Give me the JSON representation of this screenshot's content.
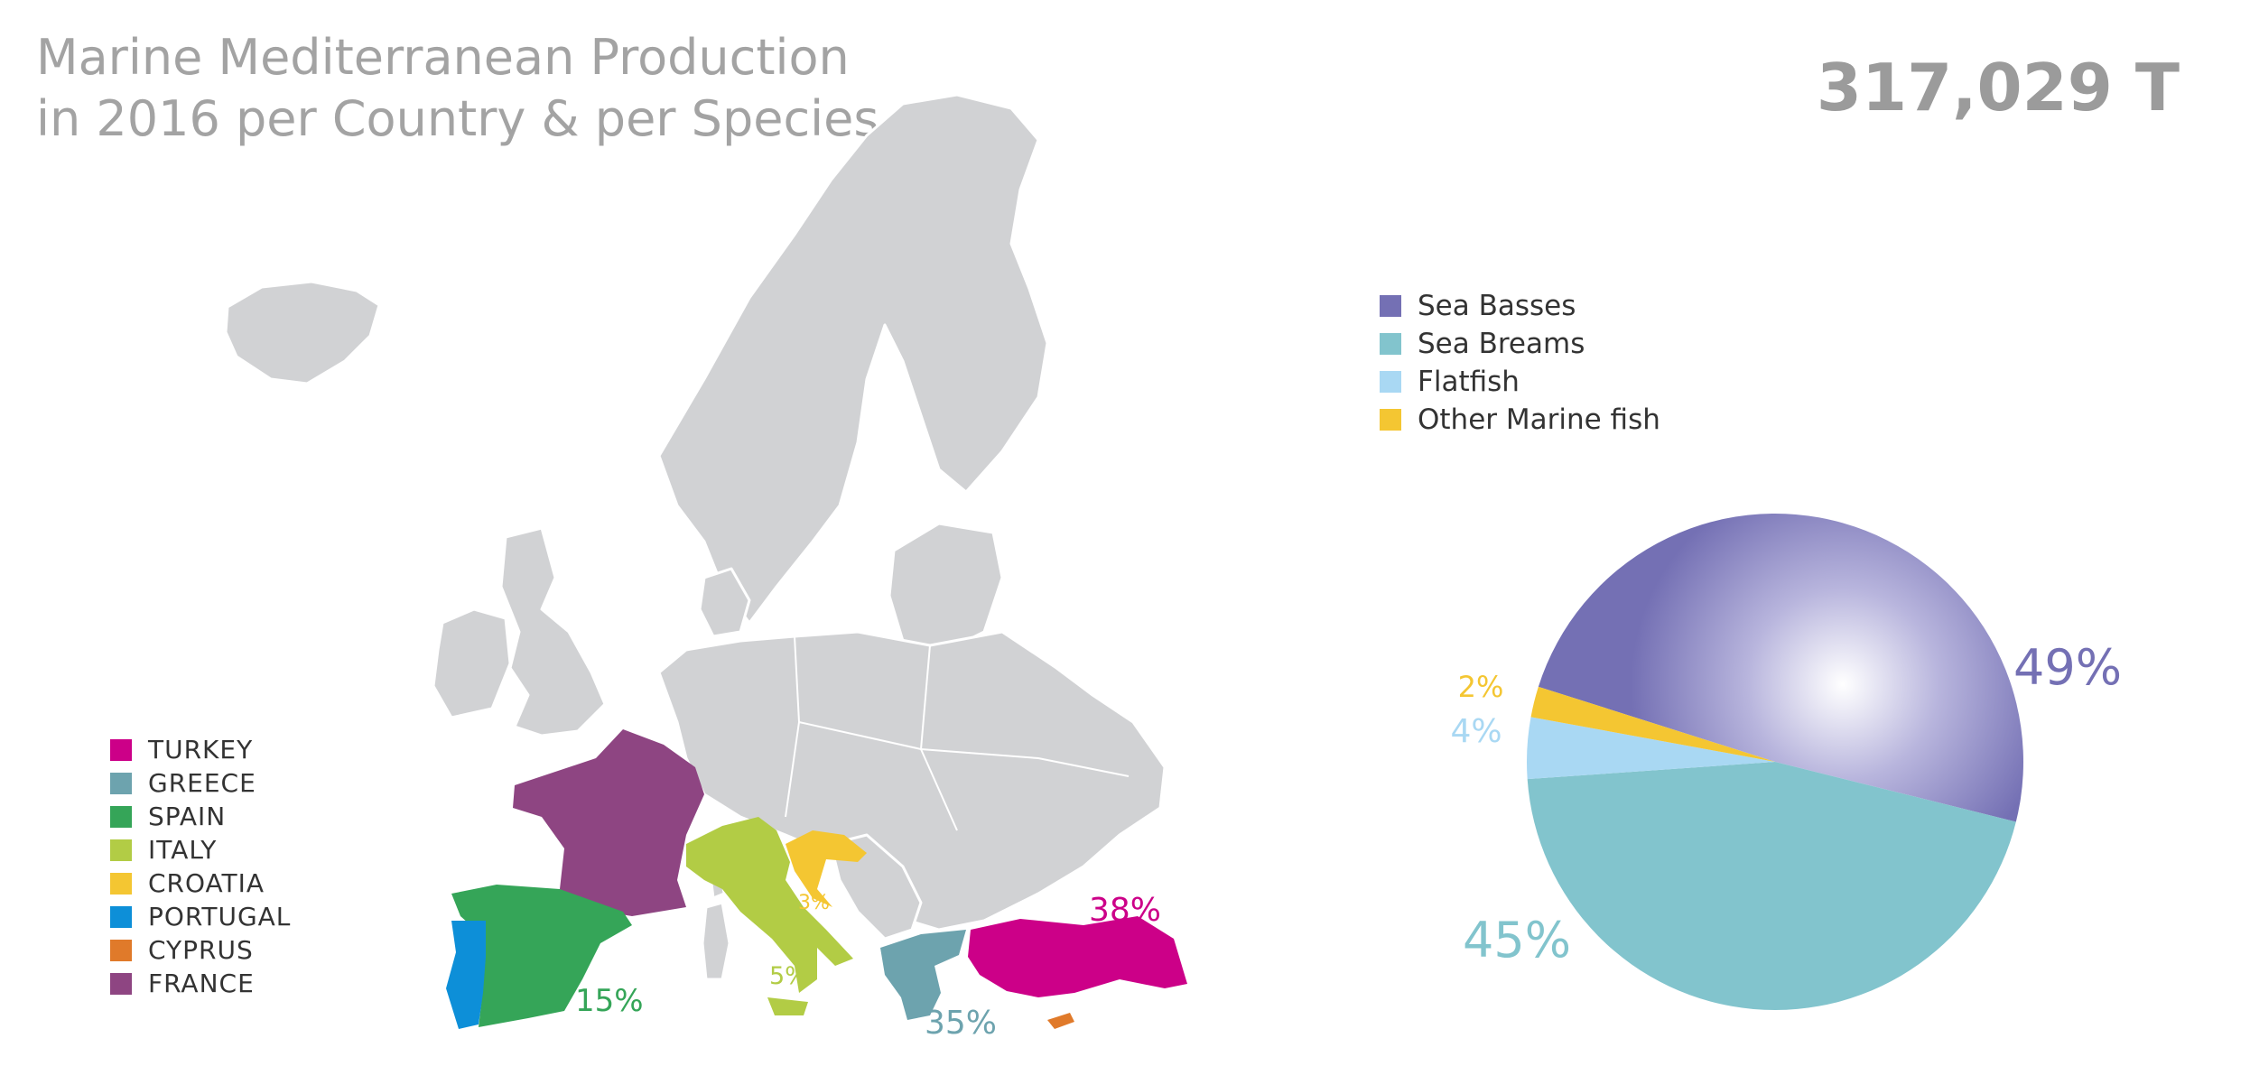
{
  "header": {
    "title_line1": "Marine Mediterranean Production",
    "title_line2": "in 2016 per Country & per Species",
    "total": "317,029 T"
  },
  "country_legend": [
    {
      "label": "TURKEY",
      "color": "#cc0088"
    },
    {
      "label": "GREECE",
      "color": "#6da3ae"
    },
    {
      "label": "SPAIN",
      "color": "#35a558"
    },
    {
      "label": "ITALY",
      "color": "#b2cc45"
    },
    {
      "label": "CROATIA",
      "color": "#f4c632"
    },
    {
      "label": "PORTUGAL",
      "color": "#0d8fd8"
    },
    {
      "label": "CYPRUS",
      "color": "#e07a2a"
    },
    {
      "label": "FRANCE",
      "color": "#8e4582"
    }
  ],
  "map_labels": {
    "turkey": "38%",
    "greece": "35%",
    "spain": "15%",
    "italy": "5%",
    "croatia": "3%"
  },
  "chart_data": {
    "type": "pie",
    "title": "",
    "series": [
      {
        "name": "Sea Basses",
        "value": 49,
        "label": "49%",
        "color": "#7470b4"
      },
      {
        "name": "Sea Breams",
        "value": 45,
        "label": "45%",
        "color": "#82c4cd"
      },
      {
        "name": "Flatfish",
        "value": 4,
        "label": "4%",
        "color": "#a9d8f3"
      },
      {
        "name": "Other Marine fish",
        "value": 2,
        "label": "2%",
        "color": "#f4c632"
      }
    ],
    "legend_position": "top-left"
  }
}
